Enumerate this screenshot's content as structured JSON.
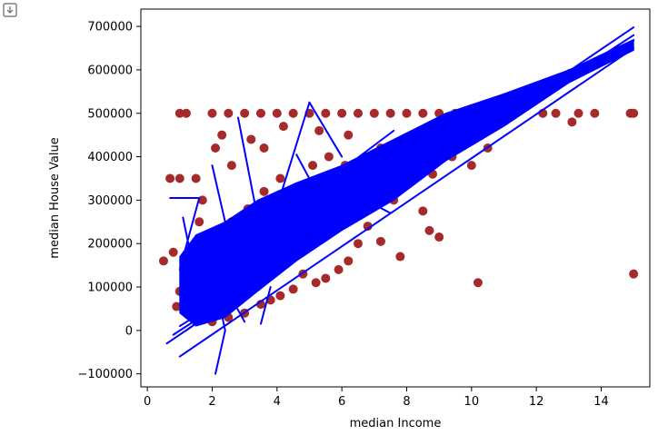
{
  "output_toggle_icon": "output-toggle-icon",
  "chart_data": {
    "type": "scatter",
    "xlabel": "median Income",
    "ylabel": "median House Value",
    "xlim": [
      -0.2,
      15.5
    ],
    "ylim": [
      -130000,
      740000
    ],
    "xticks": [
      0,
      2,
      4,
      6,
      8,
      10,
      12,
      14
    ],
    "xtick_labels": [
      "0",
      "2",
      "4",
      "6",
      "8",
      "10",
      "12",
      "14"
    ],
    "yticks": [
      -100000,
      0,
      100000,
      200000,
      300000,
      400000,
      500000,
      600000,
      700000
    ],
    "ytick_labels": [
      "−100000",
      "0",
      "100000",
      "200000",
      "300000",
      "400000",
      "500000",
      "600000",
      "700000"
    ],
    "grid": false,
    "series": [
      {
        "kind": "scatter",
        "color": "#a52a2a",
        "points": [
          [
            0.5,
            160000
          ],
          [
            0.7,
            350000
          ],
          [
            0.8,
            180000
          ],
          [
            0.9,
            55000
          ],
          [
            1.0,
            350000
          ],
          [
            1.0,
            500000
          ],
          [
            1.2,
            500000
          ],
          [
            1.5,
            350000
          ],
          [
            1.6,
            250000
          ],
          [
            1.7,
            300000
          ],
          [
            2.0,
            500000
          ],
          [
            2.1,
            420000
          ],
          [
            2.3,
            450000
          ],
          [
            2.5,
            500000
          ],
          [
            2.6,
            380000
          ],
          [
            3.0,
            500000
          ],
          [
            3.2,
            440000
          ],
          [
            3.5,
            500000
          ],
          [
            3.6,
            420000
          ],
          [
            4.0,
            500000
          ],
          [
            4.2,
            470000
          ],
          [
            4.5,
            500000
          ],
          [
            5.0,
            500000
          ],
          [
            5.3,
            460000
          ],
          [
            5.5,
            500000
          ],
          [
            6.0,
            500000
          ],
          [
            6.2,
            450000
          ],
          [
            6.5,
            500000
          ],
          [
            7.0,
            500000
          ],
          [
            7.2,
            420000
          ],
          [
            7.5,
            500000
          ],
          [
            8.0,
            500000
          ],
          [
            8.3,
            440000
          ],
          [
            8.5,
            500000
          ],
          [
            9.0,
            500000
          ],
          [
            9.3,
            460000
          ],
          [
            9.5,
            500000
          ],
          [
            10.0,
            500000
          ],
          [
            10.5,
            500000
          ],
          [
            11.0,
            500000
          ],
          [
            12.2,
            500000
          ],
          [
            12.6,
            500000
          ],
          [
            13.1,
            480000
          ],
          [
            13.3,
            500000
          ],
          [
            13.8,
            500000
          ],
          [
            14.9,
            500000
          ],
          [
            15.0,
            500000
          ],
          [
            15.0,
            130000
          ],
          [
            10.2,
            110000
          ],
          [
            10.0,
            380000
          ],
          [
            9.0,
            215000
          ],
          [
            8.5,
            275000
          ],
          [
            8.7,
            230000
          ],
          [
            7.8,
            170000
          ],
          [
            7.2,
            205000
          ],
          [
            6.8,
            240000
          ],
          [
            6.5,
            200000
          ],
          [
            6.2,
            160000
          ],
          [
            5.9,
            140000
          ],
          [
            5.5,
            120000
          ],
          [
            5.2,
            110000
          ],
          [
            4.8,
            130000
          ],
          [
            4.5,
            95000
          ],
          [
            4.1,
            80000
          ],
          [
            3.8,
            70000
          ],
          [
            3.5,
            60000
          ],
          [
            3.0,
            40000
          ],
          [
            2.5,
            30000
          ],
          [
            2.0,
            20000
          ],
          [
            1.5,
            30000
          ],
          [
            1.2,
            40000
          ],
          [
            1.0,
            90000
          ],
          [
            1.3,
            120000
          ],
          [
            1.8,
            150000
          ],
          [
            2.2,
            200000
          ],
          [
            2.6,
            250000
          ],
          [
            3.1,
            280000
          ],
          [
            3.6,
            320000
          ],
          [
            4.1,
            350000
          ],
          [
            4.6,
            330000
          ],
          [
            5.1,
            380000
          ],
          [
            5.6,
            400000
          ],
          [
            6.1,
            380000
          ],
          [
            6.6,
            350000
          ],
          [
            7.1,
            320000
          ],
          [
            7.6,
            300000
          ],
          [
            8.1,
            340000
          ],
          [
            8.8,
            360000
          ],
          [
            9.4,
            400000
          ],
          [
            10.5,
            420000
          ]
        ]
      },
      {
        "kind": "line",
        "color": "#0000ff",
        "segments": [
          [
            [
              0.6,
              -30000
            ],
            [
              15.0,
              698000
            ]
          ],
          [
            [
              0.8,
              -10000
            ],
            [
              15.0,
              680000
            ]
          ],
          [
            [
              1.0,
              10000
            ],
            [
              15.0,
              668000
            ]
          ],
          [
            [
              1.0,
              -60000
            ],
            [
              15.0,
              650000
            ]
          ],
          [
            [
              0.7,
              305000
            ],
            [
              1.6,
              305000
            ]
          ],
          [
            [
              1.6,
              305000
            ],
            [
              1.0,
              140000
            ]
          ],
          [
            [
              2.1,
              -100000
            ],
            [
              2.4,
              0
            ]
          ],
          [
            [
              2.4,
              0
            ],
            [
              2.0,
              140000
            ]
          ],
          [
            [
              5.0,
              525000
            ],
            [
              4.0,
              285000
            ]
          ],
          [
            [
              5.0,
              525000
            ],
            [
              6.0,
              400000
            ]
          ],
          [
            [
              2.8,
              490000
            ],
            [
              3.4,
              260000
            ]
          ],
          [
            [
              4.6,
              405000
            ],
            [
              5.5,
              280000
            ]
          ],
          [
            [
              6.0,
              370000
            ],
            [
              7.6,
              460000
            ]
          ],
          [
            [
              6.0,
              330000
            ],
            [
              7.5,
              270000
            ]
          ],
          [
            [
              2.0,
              380000
            ],
            [
              2.4,
              250000
            ]
          ],
          [
            [
              1.1,
              260000
            ],
            [
              1.4,
              150000
            ]
          ],
          [
            [
              2.7,
              60000
            ],
            [
              3.0,
              20000
            ]
          ],
          [
            [
              3.5,
              15000
            ],
            [
              3.8,
              100000
            ]
          ],
          [
            [
              1.2,
              0
            ],
            [
              11.0,
              540000
            ]
          ],
          [
            [
              1.5,
              30000
            ],
            [
              12.5,
              560000
            ]
          ],
          [
            [
              1.2,
              90000
            ],
            [
              10.8,
              480000
            ]
          ],
          [
            [
              2.0,
              40000
            ],
            [
              11.5,
              520000
            ]
          ],
          [
            [
              2.5,
              100000
            ],
            [
              10.0,
              430000
            ]
          ],
          [
            [
              1.5,
              150000
            ],
            [
              9.0,
              420000
            ]
          ],
          [
            [
              3.0,
              80000
            ],
            [
              13.0,
              600000
            ]
          ],
          [
            [
              1.0,
              60000
            ],
            [
              8.0,
              360000
            ]
          ],
          [
            [
              2.2,
              200000
            ],
            [
              6.5,
              300000
            ]
          ],
          [
            [
              1.8,
              180000
            ],
            [
              7.0,
              280000
            ]
          ],
          [
            [
              3.2,
              150000
            ],
            [
              10.0,
              490000
            ]
          ],
          [
            [
              2.9,
              180000
            ],
            [
              12.0,
              570000
            ]
          ]
        ],
        "band": [
          [
            1.0,
            170000
          ],
          [
            1.5,
            220000
          ],
          [
            2.4,
            250000
          ],
          [
            3.4,
            300000
          ],
          [
            4.6,
            340000
          ],
          [
            6.0,
            380000
          ],
          [
            7.6,
            440000
          ],
          [
            9.2,
            500000
          ],
          [
            11.0,
            545000
          ],
          [
            13.0,
            600000
          ],
          [
            15.0,
            670000
          ],
          [
            15.0,
            645000
          ],
          [
            13.0,
            570000
          ],
          [
            11.0,
            470000
          ],
          [
            9.2,
            390000
          ],
          [
            7.6,
            300000
          ],
          [
            6.0,
            230000
          ],
          [
            4.6,
            160000
          ],
          [
            3.4,
            90000
          ],
          [
            2.4,
            30000
          ],
          [
            1.5,
            10000
          ],
          [
            1.0,
            40000
          ]
        ]
      }
    ]
  }
}
